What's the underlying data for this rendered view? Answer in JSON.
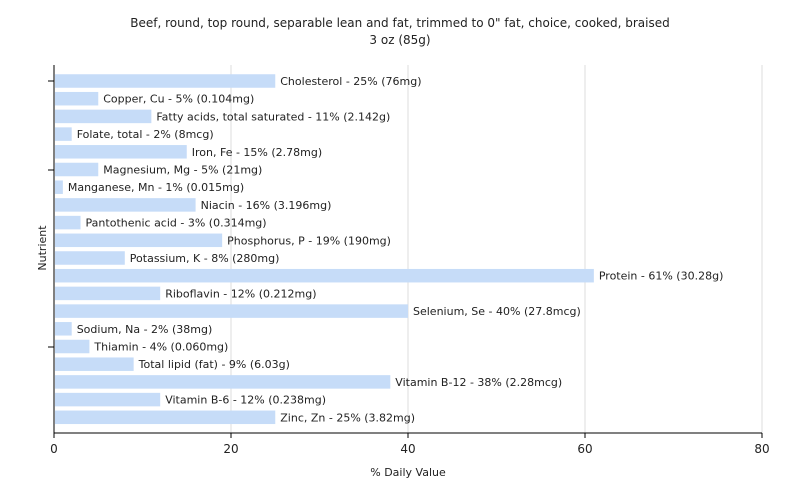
{
  "chart_data": {
    "type": "bar",
    "orientation": "horizontal",
    "title": "Beef, round, top round, separable lean and fat, trimmed to 0\" fat, choice, cooked, braised",
    "subtitle": "3 oz (85g)",
    "xlabel": "% Daily Value",
    "ylabel": "Nutrient",
    "xlim": [
      0,
      80
    ],
    "xticks": [
      0,
      20,
      40,
      60,
      80
    ],
    "grid": "vertical",
    "bar_color": "#c6dcf8",
    "categories": [
      "Cholesterol",
      "Copper, Cu",
      "Fatty acids, total saturated",
      "Folate, total",
      "Iron, Fe",
      "Magnesium, Mg",
      "Manganese, Mn",
      "Niacin",
      "Pantothenic acid",
      "Phosphorus, P",
      "Potassium, K",
      "Protein",
      "Riboflavin",
      "Selenium, Se",
      "Sodium, Na",
      "Thiamin",
      "Total lipid (fat)",
      "Vitamin B-12",
      "Vitamin B-6",
      "Zinc, Zn"
    ],
    "values": [
      25,
      5,
      11,
      2,
      15,
      5,
      1,
      16,
      3,
      19,
      8,
      61,
      12,
      40,
      2,
      4,
      9,
      38,
      12,
      25
    ],
    "labels": [
      "Cholesterol - 25% (76mg)",
      "Copper, Cu - 5% (0.104mg)",
      "Fatty acids, total saturated - 11% (2.142g)",
      "Folate, total - 2% (8mcg)",
      "Iron, Fe - 15% (2.78mg)",
      "Magnesium, Mg - 5% (21mg)",
      "Manganese, Mn - 1% (0.015mg)",
      "Niacin - 16% (3.196mg)",
      "Pantothenic acid - 3% (0.314mg)",
      "Phosphorus, P - 19% (190mg)",
      "Potassium, K - 8% (280mg)",
      "Protein - 61% (30.28g)",
      "Riboflavin - 12% (0.212mg)",
      "Selenium, Se - 40% (27.8mcg)",
      "Sodium, Na - 2% (38mg)",
      "Thiamin - 4% (0.060mg)",
      "Total lipid (fat) - 9% (6.03g)",
      "Vitamin B-12 - 38% (2.28mcg)",
      "Vitamin B-6 - 12% (0.238mg)",
      "Zinc, Zn - 25% (3.82mg)"
    ]
  }
}
